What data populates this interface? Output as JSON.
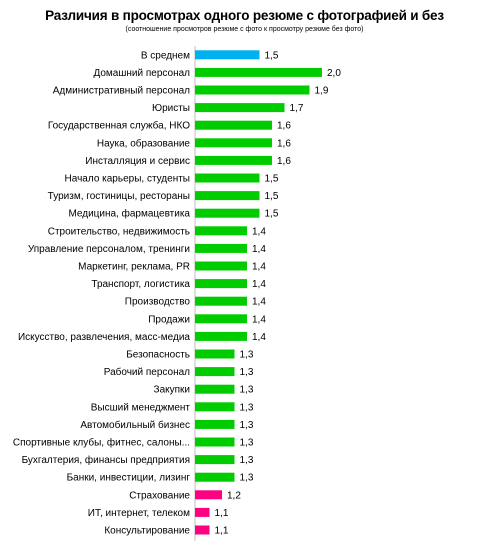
{
  "chart_data": {
    "type": "bar",
    "orientation": "horizontal",
    "title": "Различия в просмотрах одного резюме с фотографией и без",
    "subtitle": "(соотношение просмотров резюме с фото к просмотру резюме без фото)",
    "xlabel": "",
    "ylabel": "",
    "xlim": [
      0,
      2.0
    ],
    "grid": false,
    "legend": "none",
    "colors": {
      "average": "#00b0f0",
      "high": "#00cc00",
      "low": "#ff0080"
    },
    "categories": [
      "В среднем",
      "Домашний персонал",
      "Административный персонал",
      "Юристы",
      "Государственная служба, НКО",
      "Наука, образование",
      "Инсталляция и сервис",
      "Начало карьеры, студенты",
      "Туризм, гостиницы, рестораны",
      "Медицина, фармацевтика",
      "Строительство, недвижимость",
      "Управление персоналом, тренинги",
      "Маркетинг, реклама, PR",
      "Транспорт, логистика",
      "Производство",
      "Продажи",
      "Искусство, развлечения, масс-медиа",
      "Безопасность",
      "Рабочий персонал",
      "Закупки",
      "Высший менеджмент",
      "Автомобильный бизнес",
      "Спортивные клубы, фитнес, салоны...",
      "Бухгалтерия, финансы предприятия",
      "Банки, инвестиции, лизинг",
      "Страхование",
      "ИТ, интернет, телеком",
      "Консультирование"
    ],
    "values": [
      1.5,
      2.0,
      1.9,
      1.7,
      1.6,
      1.6,
      1.6,
      1.5,
      1.5,
      1.5,
      1.4,
      1.4,
      1.4,
      1.4,
      1.4,
      1.4,
      1.4,
      1.3,
      1.3,
      1.3,
      1.3,
      1.3,
      1.3,
      1.3,
      1.3,
      1.2,
      1.1,
      1.1
    ],
    "value_labels": [
      "1,5",
      "2,0",
      "1,9",
      "1,7",
      "1,6",
      "1,6",
      "1,6",
      "1,5",
      "1,5",
      "1,5",
      "1,4",
      "1,4",
      "1,4",
      "1,4",
      "1,4",
      "1,4",
      "1,4",
      "1,3",
      "1,3",
      "1,3",
      "1,3",
      "1,3",
      "1,3",
      "1,3",
      "1,3",
      "1,2",
      "1,1",
      "1,1"
    ],
    "bar_color_groups": [
      "average",
      "high",
      "high",
      "high",
      "high",
      "high",
      "high",
      "high",
      "high",
      "high",
      "high",
      "high",
      "high",
      "high",
      "high",
      "high",
      "high",
      "high",
      "high",
      "high",
      "high",
      "high",
      "high",
      "high",
      "high",
      "low",
      "low",
      "low"
    ]
  }
}
